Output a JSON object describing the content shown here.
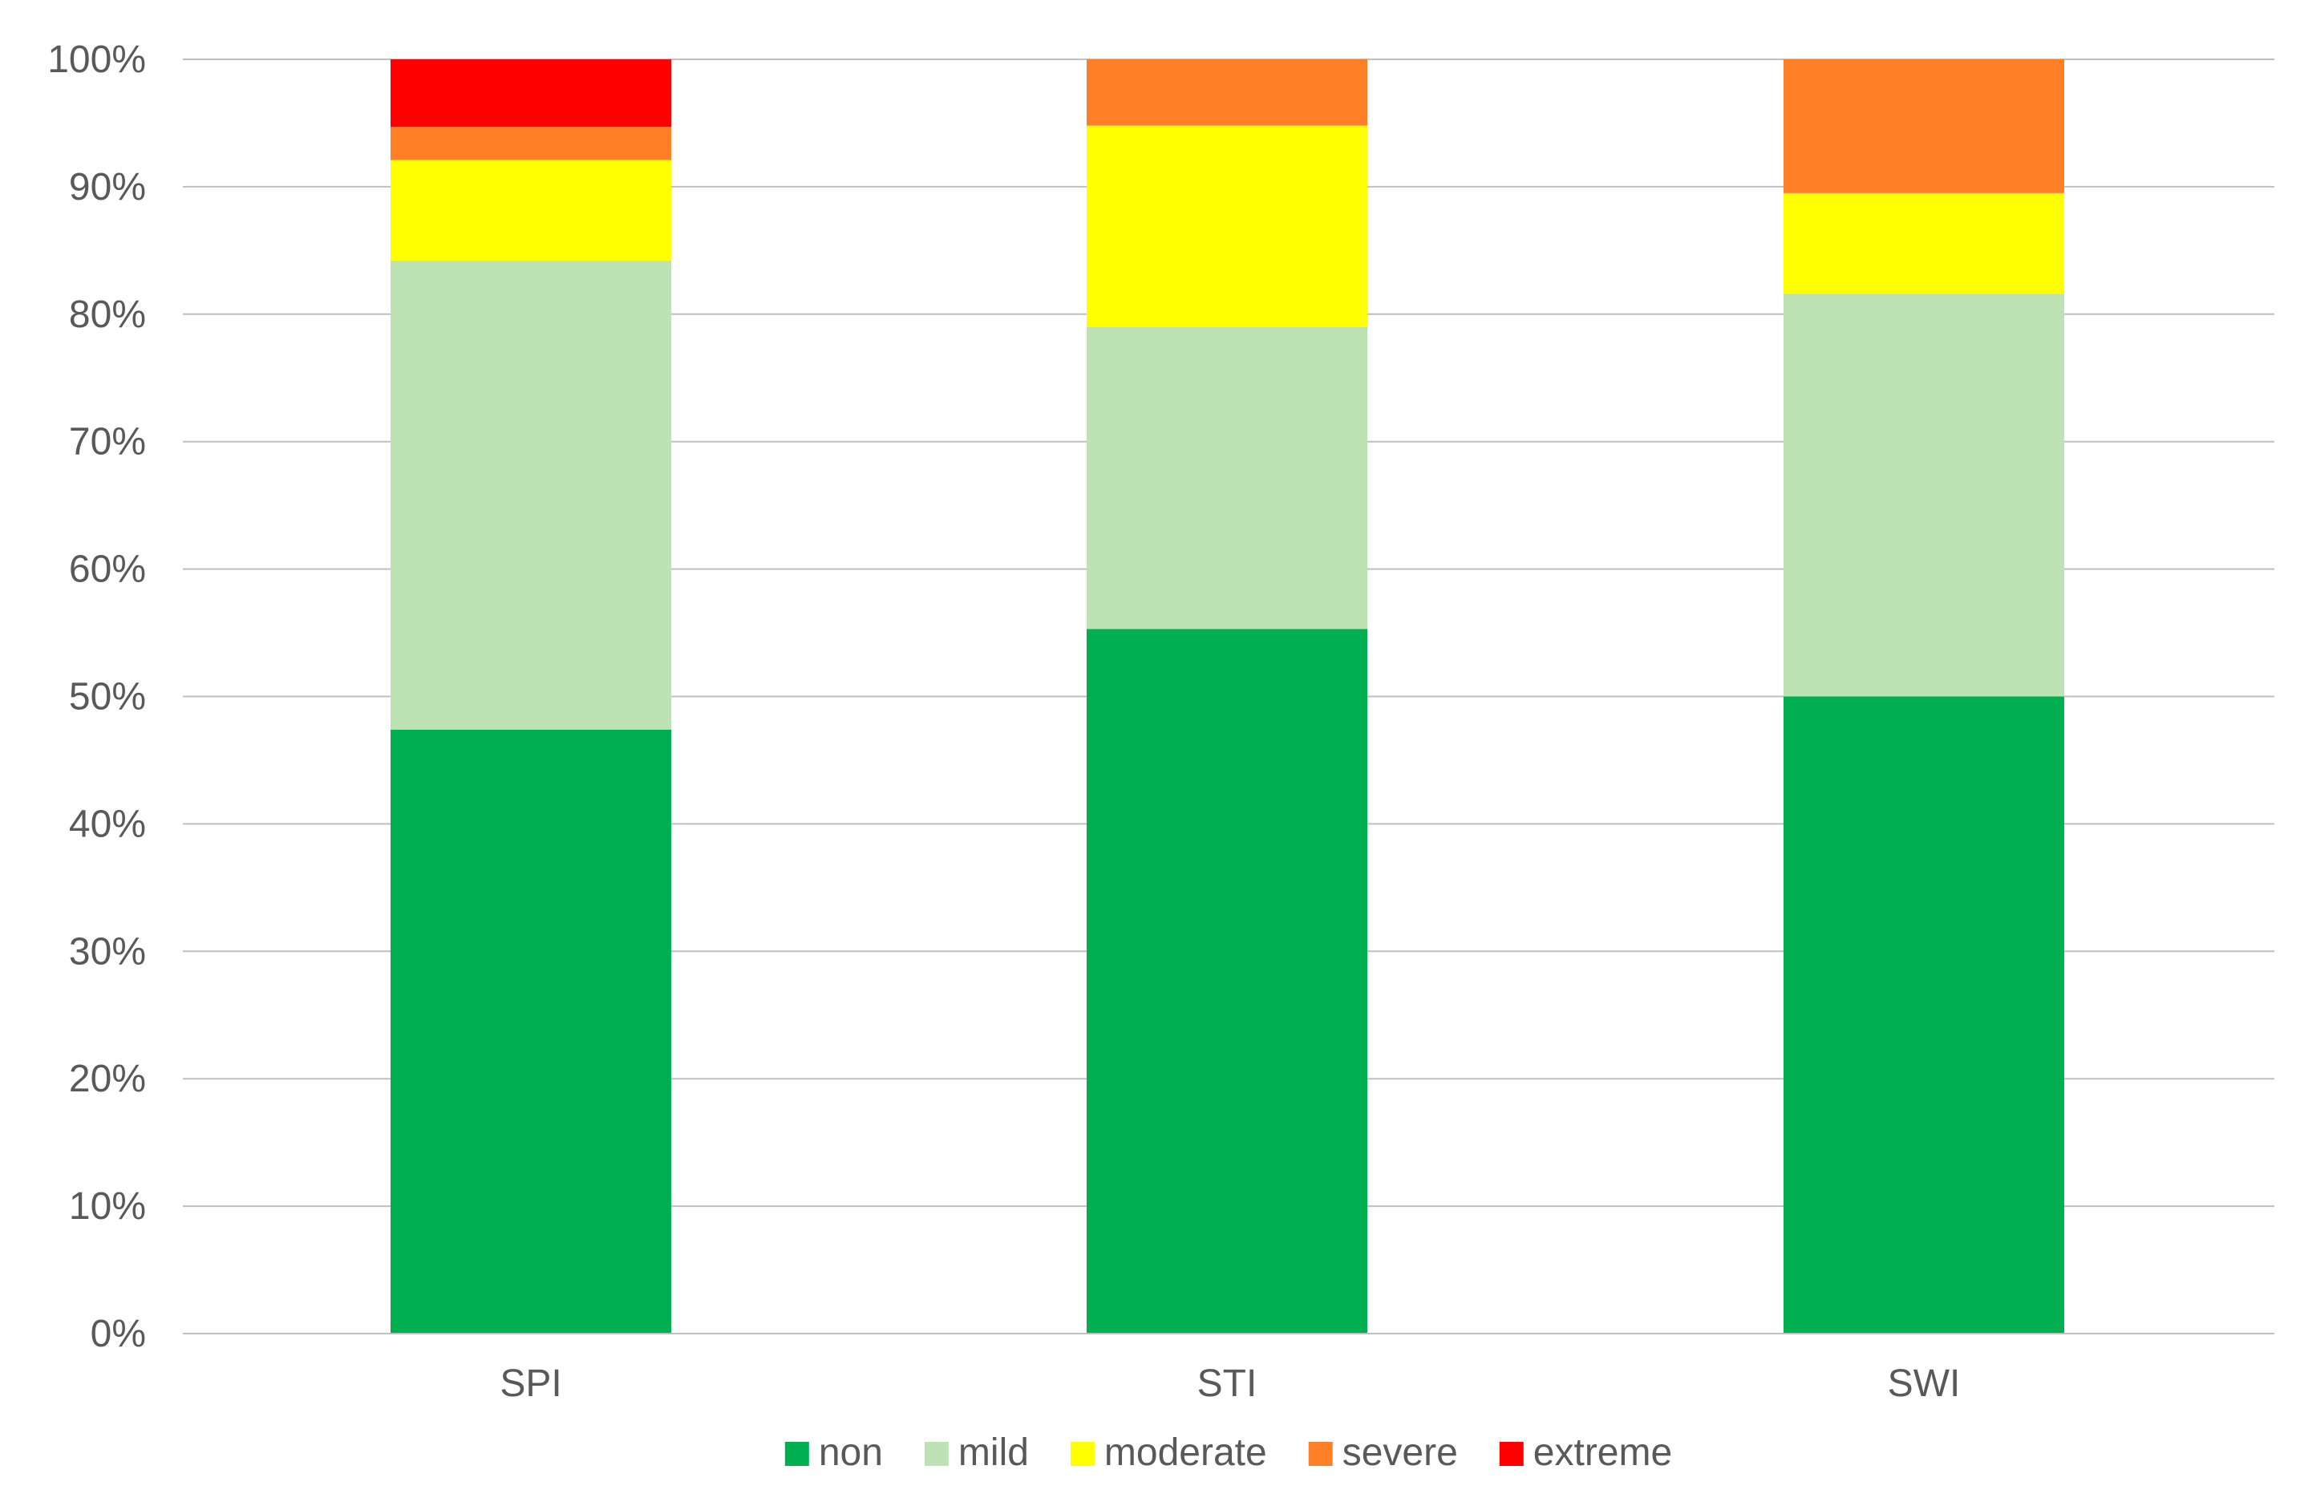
{
  "chart_data": {
    "type": "bar",
    "stacked": true,
    "percent": true,
    "title": "",
    "xlabel": "",
    "ylabel": "",
    "categories": [
      "SPI",
      "STI",
      "SWI"
    ],
    "ylim": [
      0,
      100
    ],
    "yticks": [
      "0%",
      "10%",
      "20%",
      "30%",
      "40%",
      "50%",
      "60%",
      "70%",
      "80%",
      "90%",
      "100%"
    ],
    "grid": true,
    "legend_position": "bottom",
    "series": [
      {
        "name": "non",
        "color": "#00b050",
        "values": [
          47.4,
          55.3,
          50.0
        ]
      },
      {
        "name": "mild",
        "color": "#bde3b5",
        "values": [
          36.8,
          23.7,
          31.6
        ]
      },
      {
        "name": "moderate",
        "color": "#ffff00",
        "values": [
          7.9,
          15.8,
          7.9
        ]
      },
      {
        "name": "severe",
        "color": "#ff7f27",
        "values": [
          2.6,
          5.2,
          10.5
        ]
      },
      {
        "name": "extreme",
        "color": "#ff0000",
        "values": [
          5.3,
          0.0,
          0.0
        ]
      }
    ]
  }
}
